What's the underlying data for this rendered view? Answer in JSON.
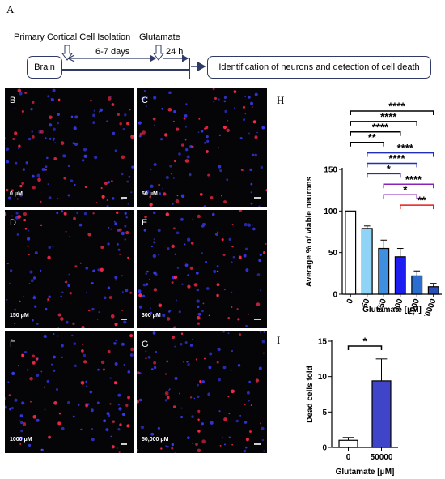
{
  "panels": {
    "A": "A",
    "B": "B",
    "C": "C",
    "D": "D",
    "E": "E",
    "F": "F",
    "G": "G",
    "H": "H",
    "I": "I"
  },
  "schematic": {
    "isolation_label": "Primary Cortical Cell Isolation",
    "glutamate_label": "Glutamate",
    "days_label": "6-7 days",
    "hours_label": "24 h",
    "brain_label": "Brain",
    "result_label": "Identification of neurons and detection of cell death"
  },
  "micrographs": [
    {
      "letter": "B",
      "concentration": "0 μM"
    },
    {
      "letter": "C",
      "concentration": "50 μM"
    },
    {
      "letter": "D",
      "concentration": "150 μM"
    },
    {
      "letter": "E",
      "concentration": "300 μM"
    },
    {
      "letter": "F",
      "concentration": "1000 μM"
    },
    {
      "letter": "G",
      "concentration": "50,000 μM"
    }
  ],
  "colors": {
    "nuclei": "#3a3cff",
    "neurons": "#ff2a4a",
    "navy": "#2f3b66"
  },
  "chart_data": [
    {
      "panel": "H",
      "type": "bar",
      "categories": [
        "0",
        "50",
        "150",
        "300",
        "1000",
        "50000"
      ],
      "values": [
        100,
        79,
        55,
        45,
        22,
        9
      ],
      "errors": [
        0,
        3,
        10,
        10,
        6,
        4
      ],
      "bar_colors": [
        "#ffffff",
        "#8fd3f6",
        "#3f8fe0",
        "#1d1df2",
        "#2a6fd0",
        "#2d4fb8"
      ],
      "ylabel": "Average % of viable neurons",
      "xlabel": "Glutamate [μM]",
      "ylim": [
        0,
        150
      ],
      "yticks": [
        0,
        50,
        100,
        150
      ],
      "grid": false,
      "significance": [
        {
          "from": "0",
          "to": "50000",
          "label": "****",
          "color": "#000000"
        },
        {
          "from": "0",
          "to": "1000",
          "label": "****",
          "color": "#000000"
        },
        {
          "from": "0",
          "to": "300",
          "label": "****",
          "color": "#000000"
        },
        {
          "from": "0",
          "to": "150",
          "label": "**",
          "color": "#000000"
        },
        {
          "from": "50",
          "to": "50000",
          "label": "****",
          "color": "#1f2fb8"
        },
        {
          "from": "50",
          "to": "1000",
          "label": "****",
          "color": "#1f2fb8"
        },
        {
          "from": "50",
          "to": "300",
          "label": "*",
          "color": "#1f2fb8"
        },
        {
          "from": "150",
          "to": "50000",
          "label": "****",
          "color": "#8a22b8"
        },
        {
          "from": "150",
          "to": "1000",
          "label": "*",
          "color": "#8a22b8"
        },
        {
          "from": "300",
          "to": "50000",
          "label": "**",
          "color": "#e81b1b"
        }
      ]
    },
    {
      "panel": "I",
      "type": "bar",
      "categories": [
        "0",
        "50000"
      ],
      "values": [
        1,
        9.4
      ],
      "errors": [
        0.4,
        3.1
      ],
      "bar_colors": [
        "#ffffff",
        "#3f44c8"
      ],
      "ylabel": "Dead cells fold",
      "xlabel": "Glutamate [μM]",
      "ylim": [
        0,
        15
      ],
      "yticks": [
        0,
        5,
        10,
        15
      ],
      "grid": false,
      "significance": [
        {
          "from": "0",
          "to": "50000",
          "label": "*",
          "color": "#000000"
        }
      ]
    }
  ]
}
